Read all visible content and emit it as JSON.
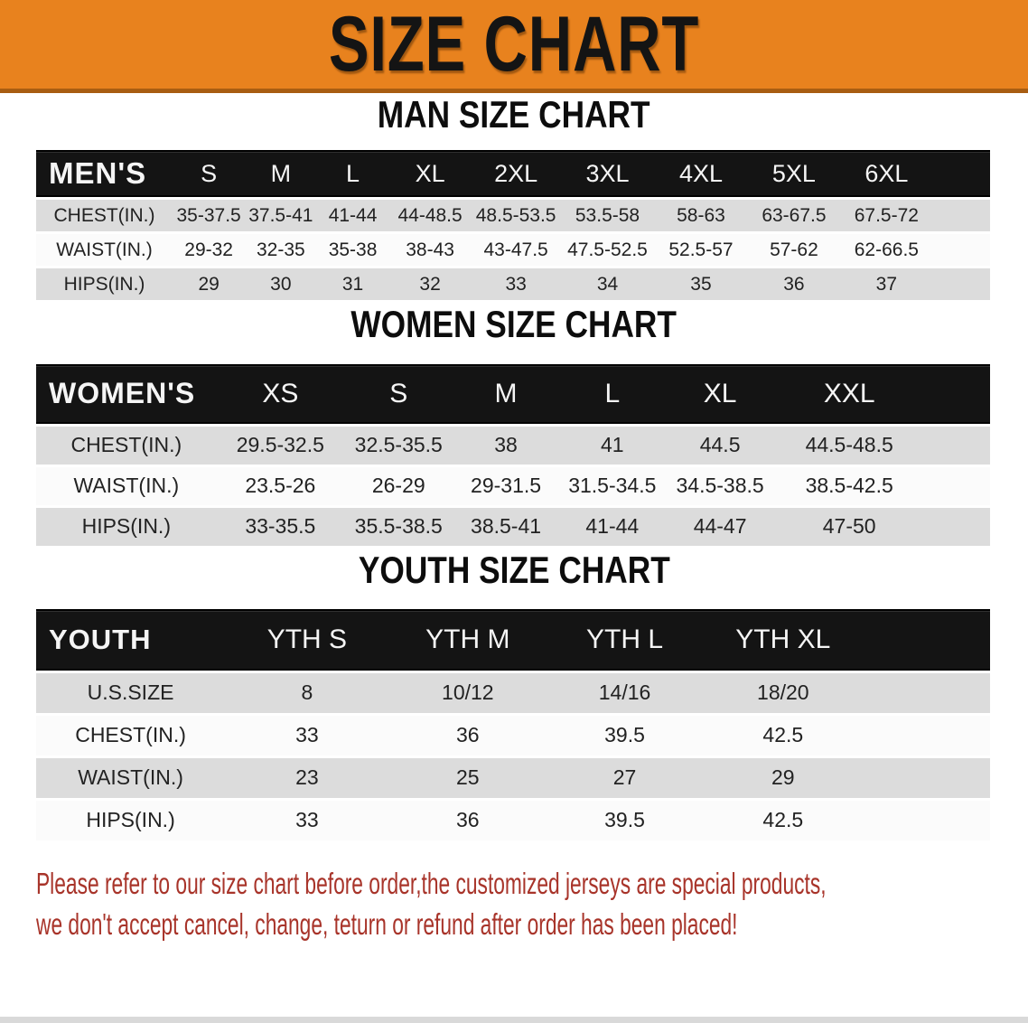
{
  "banner": {
    "title": "SIZE CHART"
  },
  "colors": {
    "banner_bg": "#e8821e",
    "banner_edge": "#a85d12",
    "header_bg": "#141414",
    "header_text": "#f5f5f5",
    "row_gray": "#dcdcdc",
    "row_white": "#fbfbfb",
    "disclaimer_text": "#a8342a"
  },
  "sections": [
    {
      "id": "men",
      "heading": "MAN SIZE CHART",
      "table": {
        "corner_label": "MEN'S",
        "columns": [
          "S",
          "M",
          "L",
          "XL",
          "2XL",
          "3XL",
          "4XL",
          "5XL",
          "6XL"
        ],
        "rows": [
          {
            "label": "CHEST(IN.)",
            "values": [
              "35-37.5",
              "37.5-41",
              "41-44",
              "44-48.5",
              "48.5-53.5",
              "53.5-58",
              "58-63",
              "63-67.5",
              "67.5-72"
            ]
          },
          {
            "label": "WAIST(IN.)",
            "values": [
              "29-32",
              "32-35",
              "35-38",
              "38-43",
              "43-47.5",
              "47.5-52.5",
              "52.5-57",
              "57-62",
              "62-66.5"
            ]
          },
          {
            "label": "HIPS(IN.)",
            "values": [
              "29",
              "30",
              "31",
              "32",
              "33",
              "34",
              "35",
              "36",
              "37"
            ]
          }
        ]
      }
    },
    {
      "id": "women",
      "heading": "WOMEN SIZE CHART",
      "table": {
        "corner_label": "WOMEN'S",
        "columns": [
          "XS",
          "S",
          "M",
          "L",
          "XL",
          "XXL"
        ],
        "rows": [
          {
            "label": "CHEST(IN.)",
            "values": [
              "29.5-32.5",
              "32.5-35.5",
              "38",
              "41",
              "44.5",
              "44.5-48.5"
            ]
          },
          {
            "label": "WAIST(IN.)",
            "values": [
              "23.5-26",
              "26-29",
              "29-31.5",
              "31.5-34.5",
              "34.5-38.5",
              "38.5-42.5"
            ]
          },
          {
            "label": "HIPS(IN.)",
            "values": [
              "33-35.5",
              "35.5-38.5",
              "38.5-41",
              "41-44",
              "44-47",
              "47-50"
            ]
          }
        ]
      }
    },
    {
      "id": "youth",
      "heading": "YOUTH SIZE CHART",
      "table": {
        "corner_label": "YOUTH",
        "columns": [
          "YTH S",
          "YTH M",
          "YTH L",
          "YTH XL"
        ],
        "rows": [
          {
            "label": "U.S.SIZE",
            "values": [
              "8",
              "10/12",
              "14/16",
              "18/20"
            ]
          },
          {
            "label": "CHEST(IN.)",
            "values": [
              "33",
              "36",
              "39.5",
              "42.5"
            ]
          },
          {
            "label": "WAIST(IN.)",
            "values": [
              "23",
              "25",
              "27",
              "29"
            ]
          },
          {
            "label": "HIPS(IN.)",
            "values": [
              "33",
              "36",
              "39.5",
              "42.5"
            ]
          }
        ]
      }
    }
  ],
  "disclaimer": {
    "line1": "Please refer to our size chart before order,the customized jerseys are special products,",
    "line2": "we don't accept cancel, change, teturn or refund after order has been placed!"
  }
}
